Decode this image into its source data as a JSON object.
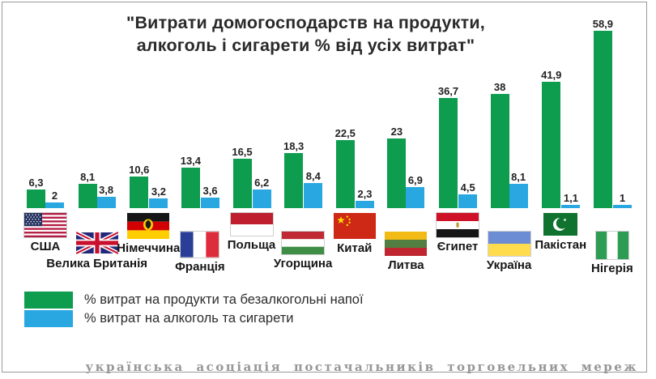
{
  "chart_data": {
    "type": "bar",
    "title": "\"Витрати домогосподарств на продукти,\nалкоголь і сигарети % від усіх витрат\"",
    "categories": [
      "США",
      "Велика Британія",
      "Німеччина",
      "Франція",
      "Польща",
      "Угорщина",
      "Китай",
      "Литва",
      "Єгипет",
      "Україна",
      "Пакістан",
      "Нігерія"
    ],
    "flags": [
      "usa",
      "uk",
      "germany",
      "france",
      "poland",
      "hungary",
      "china",
      "lithuania",
      "egypt",
      "ukraine",
      "pakistan",
      "nigeria"
    ],
    "series": [
      {
        "name": "% витрат на продукти та безалкогольні напої",
        "color": "#0E9C4F",
        "values": [
          6.3,
          8.1,
          10.6,
          13.4,
          16.5,
          18.3,
          22.5,
          23,
          36.7,
          38,
          41.9,
          58.9
        ],
        "labels": [
          "6,3",
          "8,1",
          "10,6",
          "13,4",
          "16,5",
          "18,3",
          "22,5",
          "23",
          "36,7",
          "38",
          "41,9",
          "58,9"
        ]
      },
      {
        "name": "% витрат на алкоголь та сигарети",
        "color": "#29A7E1",
        "values": [
          2,
          3.8,
          3.2,
          3.6,
          6.2,
          8.4,
          2.3,
          6.9,
          4.5,
          8.1,
          1.1,
          1
        ],
        "labels": [
          "2",
          "3,8",
          "3,2",
          "3,6",
          "6,2",
          "8,4",
          "2,3",
          "6,9",
          "4,5",
          "8,1",
          "1,1",
          "1"
        ]
      }
    ],
    "ylim": [
      0,
      60
    ],
    "grid": false,
    "axes_visible": false,
    "legend_position": "bottom-left"
  },
  "footer": {
    "watermark": "українська асоціація постачальників торговельних мереж"
  }
}
